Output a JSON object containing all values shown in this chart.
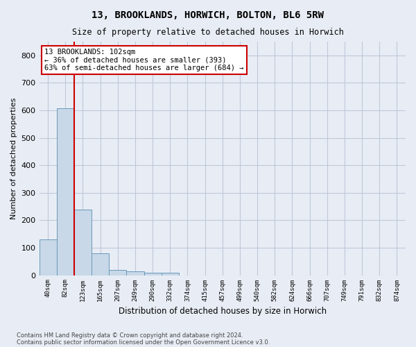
{
  "title": "13, BROOKLANDS, HORWICH, BOLTON, BL6 5RW",
  "subtitle": "Size of property relative to detached houses in Horwich",
  "xlabel": "Distribution of detached houses by size in Horwich",
  "ylabel": "Number of detached properties",
  "footnote1": "Contains HM Land Registry data © Crown copyright and database right 2024.",
  "footnote2": "Contains public sector information licensed under the Open Government Licence v3.0.",
  "bin_labels": [
    "40sqm",
    "82sqm",
    "123sqm",
    "165sqm",
    "207sqm",
    "249sqm",
    "290sqm",
    "332sqm",
    "374sqm",
    "415sqm",
    "457sqm",
    "499sqm",
    "540sqm",
    "582sqm",
    "624sqm",
    "666sqm",
    "707sqm",
    "749sqm",
    "791sqm",
    "832sqm",
    "874sqm"
  ],
  "bar_heights": [
    130,
    608,
    238,
    80,
    20,
    13,
    9,
    10,
    0,
    0,
    0,
    0,
    0,
    0,
    0,
    0,
    0,
    0,
    0,
    0,
    0
  ],
  "bar_color": "#c8d8e8",
  "bar_edge_color": "#6898b8",
  "grid_color": "#c0c8d8",
  "background_color": "#e8edf5",
  "annotation_text": "13 BROOKLANDS: 102sqm\n← 36% of detached houses are smaller (393)\n63% of semi-detached houses are larger (684) →",
  "annotation_box_color": "#ffffff",
  "annotation_text_color": "#000000",
  "red_color": "#cc0000",
  "ylim": [
    0,
    850
  ],
  "yticks": [
    0,
    100,
    200,
    300,
    400,
    500,
    600,
    700,
    800
  ]
}
